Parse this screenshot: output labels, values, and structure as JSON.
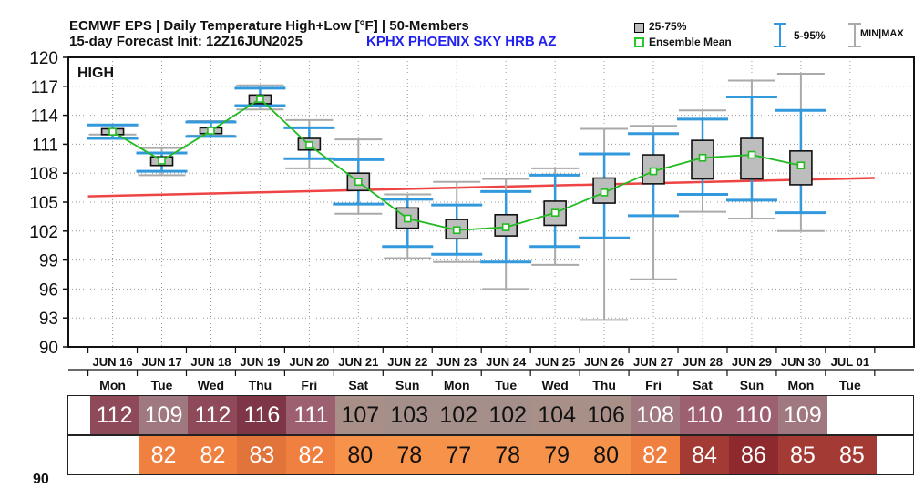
{
  "header": {
    "title": "ECMWF EPS | Daily Temperature High+Low [°F] | 50-Members",
    "subtitle": "15-day Forecast Init: 12Z16JUN2025",
    "station": "KPHX  PHOENIX SKY HRB AZ",
    "legend": {
      "box_label": "25-75%",
      "mean_label": "Ensemble Mean",
      "whisker_label": "5-95%",
      "minmax_label": "MIN|MAX"
    }
  },
  "colors": {
    "box_fill": "#bdbdbd",
    "mean_line": "#22bb22",
    "whisker_5_95": "#3399dd",
    "minmax": "#aaaaaa",
    "normal_line": "#ee4444"
  },
  "chart_data": {
    "type": "boxplot",
    "panel_label": "HIGH",
    "ylim": [
      90,
      120
    ],
    "yticks": [
      90,
      93,
      96,
      99,
      102,
      105,
      108,
      111,
      114,
      117,
      120
    ],
    "grid": true,
    "dates": [
      "JUN 16",
      "JUN 17",
      "JUN 18",
      "JUN 19",
      "JUN 20",
      "JUN 21",
      "JUN 22",
      "JUN 23",
      "JUN 24",
      "JUN 25",
      "JUN 26",
      "JUN 27",
      "JUN 28",
      "JUN 29",
      "JUN 30",
      "JUL 01"
    ],
    "days": [
      "Mon",
      "Tue",
      "Wed",
      "Thu",
      "Fri",
      "Sat",
      "Sun",
      "Mon",
      "Tue",
      "Wed",
      "Thu",
      "Fri",
      "Sat",
      "Sun",
      "Mon",
      "Tue"
    ],
    "ensemble": [
      {
        "min": 112.0,
        "p5": 111.6,
        "q1": 112.0,
        "mean": 112.3,
        "q3": 112.6,
        "p95": 113.0,
        "max": 113.0
      },
      {
        "min": 107.8,
        "p5": 108.2,
        "q1": 108.8,
        "mean": 109.3,
        "q3": 109.7,
        "p95": 110.1,
        "max": 110.6
      },
      {
        "min": 111.9,
        "p5": 111.8,
        "q1": 112.1,
        "mean": 112.4,
        "q3": 112.7,
        "p95": 113.3,
        "max": 113.4
      },
      {
        "min": 114.6,
        "p5": 115.0,
        "q1": 115.2,
        "mean": 115.7,
        "q3": 116.1,
        "p95": 116.8,
        "max": 117.1
      },
      {
        "min": 108.5,
        "p5": 109.5,
        "q1": 110.4,
        "mean": 110.9,
        "q3": 111.6,
        "p95": 112.7,
        "max": 113.5
      },
      {
        "min": 103.8,
        "p5": 104.8,
        "q1": 106.2,
        "mean": 107.1,
        "q3": 108.0,
        "p95": 109.4,
        "max": 111.5
      },
      {
        "min": 99.2,
        "p5": 100.4,
        "q1": 102.3,
        "mean": 103.3,
        "q3": 104.4,
        "p95": 105.3,
        "max": 105.8
      },
      {
        "min": 98.8,
        "p5": 99.6,
        "q1": 101.2,
        "mean": 102.1,
        "q3": 103.2,
        "p95": 104.7,
        "max": 107.1
      },
      {
        "min": 96.0,
        "p5": 98.8,
        "q1": 101.5,
        "mean": 102.4,
        "q3": 103.7,
        "p95": 106.1,
        "max": 107.4
      },
      {
        "min": 98.5,
        "p5": 100.4,
        "q1": 102.6,
        "mean": 103.9,
        "q3": 105.1,
        "p95": 107.8,
        "max": 108.5
      },
      {
        "min": 92.8,
        "p5": 101.3,
        "q1": 104.9,
        "mean": 106.0,
        "q3": 107.5,
        "p95": 110.0,
        "max": 112.6
      },
      {
        "min": 97.0,
        "p5": 103.6,
        "q1": 106.9,
        "mean": 108.2,
        "q3": 109.9,
        "p95": 112.1,
        "max": 112.9
      },
      {
        "min": 104.0,
        "p5": 105.8,
        "q1": 107.4,
        "mean": 109.6,
        "q3": 111.4,
        "p95": 113.6,
        "max": 114.5
      },
      {
        "min": 103.3,
        "p5": 105.2,
        "q1": 107.4,
        "mean": 109.9,
        "q3": 111.6,
        "p95": 115.9,
        "max": 117.6
      },
      {
        "min": 102.0,
        "p5": 103.9,
        "q1": 106.8,
        "mean": 108.8,
        "q3": 110.3,
        "p95": 114.5,
        "max": 118.3
      }
    ],
    "normal_line": {
      "x": [
        -0.5,
        15.5
      ],
      "y": [
        105.6,
        107.5
      ]
    },
    "high_row": [
      112,
      109,
      112,
      116,
      111,
      107,
      103,
      102,
      102,
      104,
      106,
      108,
      110,
      110,
      109
    ],
    "low_row": [
      82,
      82,
      83,
      82,
      80,
      78,
      77,
      78,
      79,
      80,
      82,
      84,
      86,
      85,
      85
    ],
    "bottom_cutoff_label": "90"
  }
}
